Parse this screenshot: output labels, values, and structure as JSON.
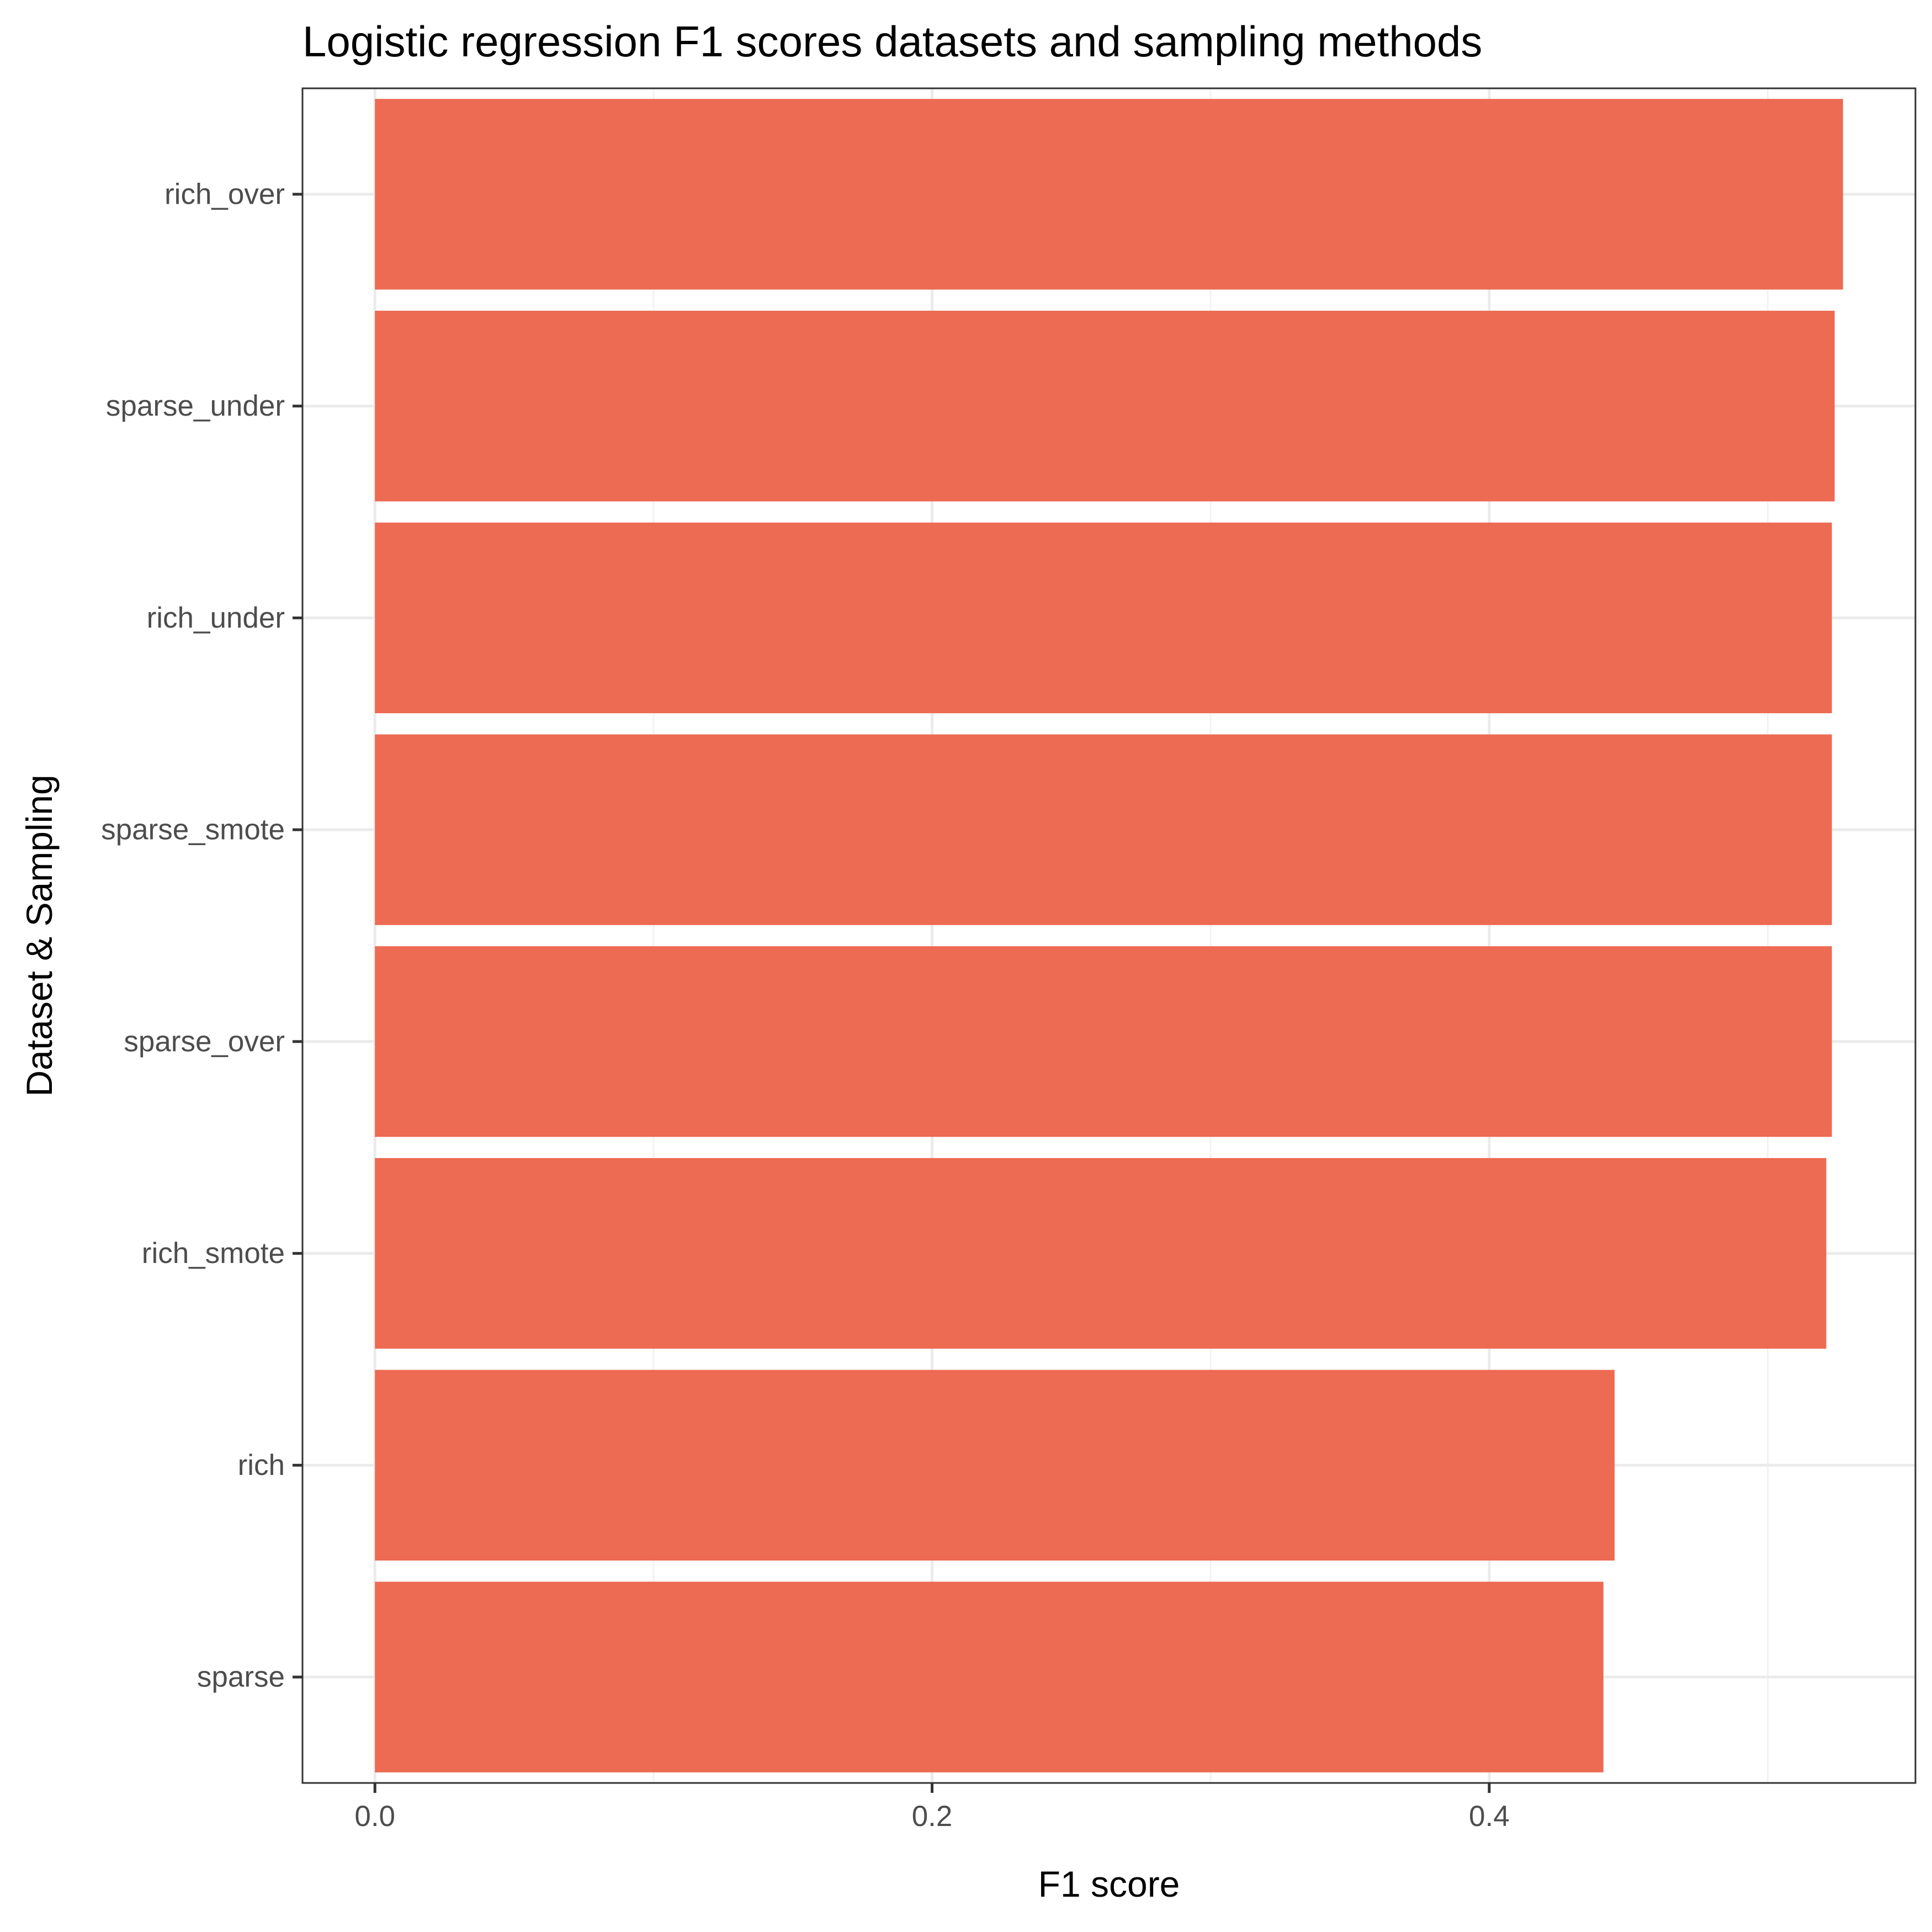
{
  "chart_data": {
    "type": "bar",
    "orientation": "horizontal",
    "title": "Logistic regression F1 scores datasets and sampling methods",
    "xlabel": "F1 score",
    "ylabel": "Dataset & Sampling",
    "categories": [
      "rich_over",
      "sparse_under",
      "rich_under",
      "sparse_smote",
      "sparse_over",
      "rich_smote",
      "rich",
      "sparse"
    ],
    "values": [
      0.527,
      0.524,
      0.523,
      0.523,
      0.523,
      0.521,
      0.445,
      0.441
    ],
    "xticks": [
      0.0,
      0.2,
      0.4
    ],
    "xtick_labels": [
      "0.0",
      "0.2",
      "0.4"
    ],
    "xlim": [
      -0.026,
      0.553
    ],
    "bar_color": "#ED6A53",
    "grid": true,
    "legend": "none"
  }
}
